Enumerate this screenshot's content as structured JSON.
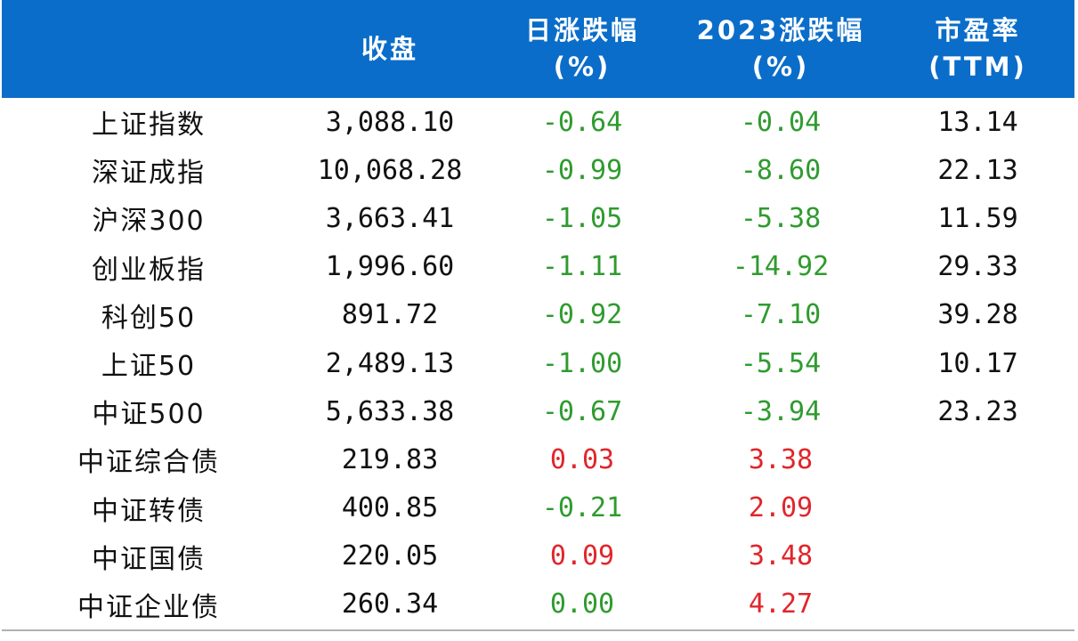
{
  "header": {
    "columns": [
      {
        "line1": "",
        "line2": ""
      },
      {
        "line1": "收盘",
        "line2": ""
      },
      {
        "line1": "日涨跌幅",
        "line2": "(%)"
      },
      {
        "line1": "2023涨跌幅",
        "line2": "(%)"
      },
      {
        "line1": "市盈率",
        "line2": "(TTM)"
      }
    ]
  },
  "colors": {
    "header_bg": "#0a6dc9",
    "negative": "#2f9b2f",
    "positive": "#e0262b"
  },
  "rows": [
    {
      "name": "上证指数",
      "close": "3,088.10",
      "daily": "-0.64",
      "ytd": "-0.04",
      "pe": "13.14",
      "daily_sign": "neg",
      "ytd_sign": "neg"
    },
    {
      "name": "深证成指",
      "close": "10,068.28",
      "daily": "-0.99",
      "ytd": "-8.60",
      "pe": "22.13",
      "daily_sign": "neg",
      "ytd_sign": "neg"
    },
    {
      "name": "沪深300",
      "close": "3,663.41",
      "daily": "-1.05",
      "ytd": "-5.38",
      "pe": "11.59",
      "daily_sign": "neg",
      "ytd_sign": "neg"
    },
    {
      "name": "创业板指",
      "close": "1,996.60",
      "daily": "-1.11",
      "ytd": "-14.92",
      "pe": "29.33",
      "daily_sign": "neg",
      "ytd_sign": "neg"
    },
    {
      "name": "科创50",
      "close": "891.72",
      "daily": "-0.92",
      "ytd": "-7.10",
      "pe": "39.28",
      "daily_sign": "neg",
      "ytd_sign": "neg"
    },
    {
      "name": "上证50",
      "close": "2,489.13",
      "daily": "-1.00",
      "ytd": "-5.54",
      "pe": "10.17",
      "daily_sign": "neg",
      "ytd_sign": "neg"
    },
    {
      "name": "中证500",
      "close": "5,633.38",
      "daily": "-0.67",
      "ytd": "-3.94",
      "pe": "23.23",
      "daily_sign": "neg",
      "ytd_sign": "neg"
    },
    {
      "name": "中证综合债",
      "close": "219.83",
      "daily": "0.03",
      "ytd": "3.38",
      "pe": "",
      "daily_sign": "pos",
      "ytd_sign": "pos"
    },
    {
      "name": "中证转债",
      "close": "400.85",
      "daily": "-0.21",
      "ytd": "2.09",
      "pe": "",
      "daily_sign": "neg",
      "ytd_sign": "pos"
    },
    {
      "name": "中证国债",
      "close": "220.05",
      "daily": "0.09",
      "ytd": "3.48",
      "pe": "",
      "daily_sign": "pos",
      "ytd_sign": "pos"
    },
    {
      "name": "中证企业债",
      "close": "260.34",
      "daily": "0.00",
      "ytd": "4.27",
      "pe": "",
      "daily_sign": "zero",
      "ytd_sign": "pos"
    }
  ]
}
